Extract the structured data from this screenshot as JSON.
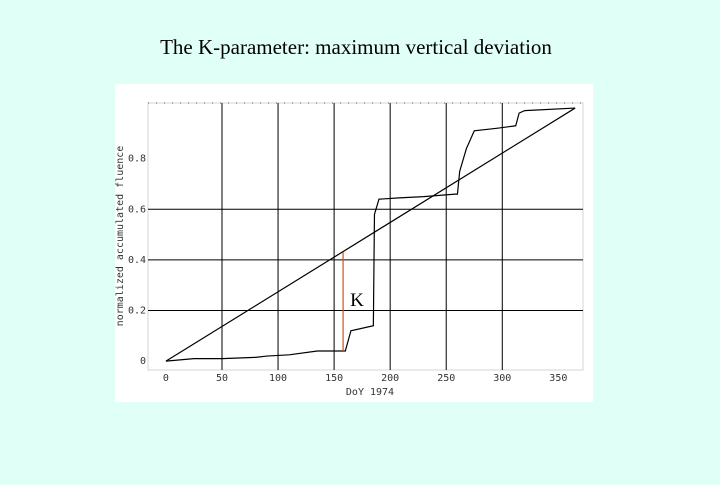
{
  "chart_data": {
    "type": "line",
    "title": "The K-parameter: maximum vertical deviation",
    "x_label": "DoY 1974",
    "y_label": "normalized accumulated fluence",
    "annotation": "K",
    "xlim": [
      -16,
      372
    ],
    "ylim": [
      -0.035,
      1.02
    ],
    "xticks": [
      0,
      50,
      100,
      150,
      200,
      250,
      300,
      350
    ],
    "yticks": [
      0,
      0.2,
      0.4,
      0.6,
      0.8
    ],
    "grid": true,
    "series": [
      {
        "color": "#000000",
        "x": [
          0,
          25,
          50,
          80,
          90,
          110,
          135,
          160,
          165,
          185,
          186,
          190,
          208,
          230,
          258,
          260,
          262,
          268,
          275,
          295,
          312,
          315,
          320,
          365
        ],
        "values": [
          0,
          0.01,
          0.01,
          0.015,
          0.02,
          0.025,
          0.04,
          0.04,
          0.12,
          0.14,
          0.58,
          0.64,
          0.645,
          0.65,
          0.66,
          0.66,
          0.75,
          0.84,
          0.91,
          0.92,
          0.93,
          0.98,
          0.99,
          1
        ]
      },
      {
        "color": "#000000",
        "x": [
          0,
          365
        ],
        "values": [
          0,
          1
        ]
      },
      {
        "color": "#d05020",
        "x": [
          158,
          158
        ],
        "values": [
          0.04,
          0.43
        ]
      }
    ]
  }
}
